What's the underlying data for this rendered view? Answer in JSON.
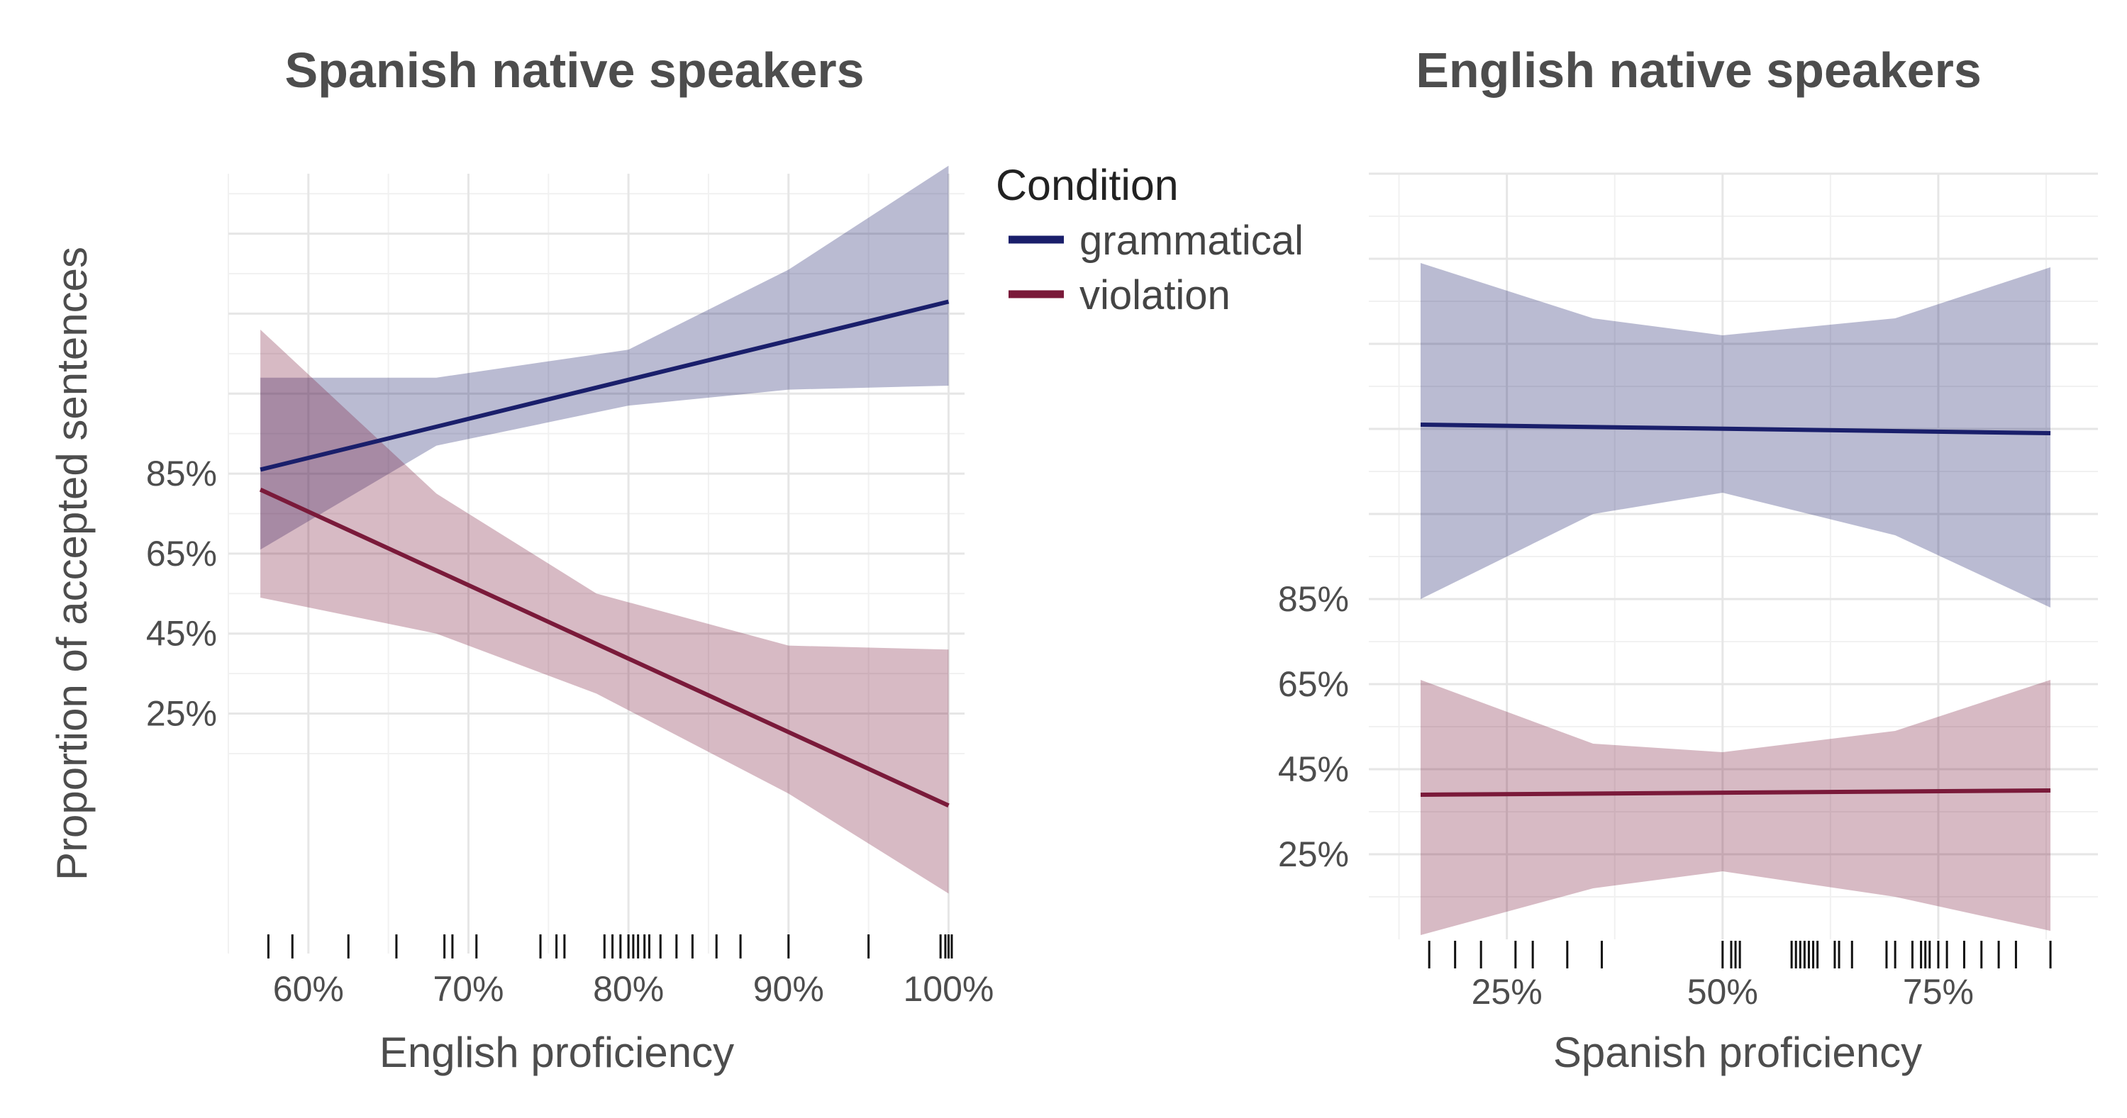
{
  "chart_data": [
    {
      "type": "line",
      "title": "Spanish native speakers",
      "xlabel": "English proficiency",
      "ylabel": "Proportion of accepted sentences",
      "xlim": [
        0.55,
        1.01
      ],
      "ylim": [
        -0.35,
        1.6
      ],
      "xticks": [
        0.6,
        0.7,
        0.8,
        0.9,
        1.0
      ],
      "xtick_labels": [
        "60%",
        "70%",
        "80%",
        "90%",
        "100%"
      ],
      "yticks": [
        0.25,
        0.45,
        0.65,
        0.85
      ],
      "ytick_labels": [
        "25%",
        "45%",
        "65%",
        "85%"
      ],
      "grid": true,
      "series": [
        {
          "name": "grammatical",
          "color": "#1a1f6b",
          "x": [
            0.57,
            1.0
          ],
          "y": [
            0.86,
            1.28
          ],
          "lower": [
            0.66,
            1.07
          ],
          "upper": [
            1.09,
            1.62
          ],
          "band_x": [
            0.57,
            0.68,
            0.8,
            0.9,
            1.0
          ],
          "band_lower": [
            0.66,
            0.92,
            1.02,
            1.06,
            1.07
          ],
          "band_upper": [
            1.09,
            1.09,
            1.16,
            1.36,
            1.62
          ]
        },
        {
          "name": "violation",
          "color": "#7a1a3a",
          "x": [
            0.57,
            1.0
          ],
          "y": [
            0.81,
            0.02
          ],
          "band_x": [
            0.57,
            0.68,
            0.78,
            0.9,
            1.0
          ],
          "band_lower": [
            0.54,
            0.45,
            0.3,
            0.05,
            -0.2
          ],
          "band_upper": [
            1.21,
            0.8,
            0.55,
            0.42,
            0.41
          ]
        }
      ],
      "rug_x": [
        0.575,
        0.59,
        0.625,
        0.655,
        0.685,
        0.69,
        0.705,
        0.745,
        0.755,
        0.76,
        0.785,
        0.79,
        0.795,
        0.8,
        0.803,
        0.806,
        0.81,
        0.813,
        0.82,
        0.83,
        0.84,
        0.855,
        0.87,
        0.9,
        0.95,
        0.995,
        0.998,
        1.0,
        1.002
      ]
    },
    {
      "type": "line",
      "title": "English native speakers",
      "xlabel": "Spanish proficiency",
      "xlim": [
        0.09,
        0.935
      ],
      "ylim": [
        0.05,
        1.85
      ],
      "xticks": [
        0.25,
        0.5,
        0.75
      ],
      "xtick_labels": [
        "25%",
        "50%",
        "75%"
      ],
      "yticks": [
        0.25,
        0.45,
        0.65,
        0.85
      ],
      "ytick_labels": [
        "25%",
        "45%",
        "65%",
        "85%"
      ],
      "grid": true,
      "series": [
        {
          "name": "grammatical",
          "color": "#1a1f6b",
          "x": [
            0.15,
            0.88
          ],
          "y": [
            1.26,
            1.24
          ],
          "band_x": [
            0.15,
            0.35,
            0.5,
            0.7,
            0.88
          ],
          "band_lower": [
            0.85,
            1.05,
            1.1,
            1.0,
            0.83
          ],
          "band_upper": [
            1.64,
            1.51,
            1.47,
            1.51,
            1.63
          ]
        },
        {
          "name": "violation",
          "color": "#7a1a3a",
          "x": [
            0.15,
            0.88
          ],
          "y": [
            0.39,
            0.4
          ],
          "band_x": [
            0.15,
            0.35,
            0.5,
            0.7,
            0.88
          ],
          "band_lower": [
            0.06,
            0.17,
            0.21,
            0.15,
            0.07
          ],
          "band_upper": [
            0.66,
            0.51,
            0.49,
            0.54,
            0.66
          ]
        }
      ],
      "rug_x": [
        0.16,
        0.19,
        0.22,
        0.26,
        0.28,
        0.32,
        0.36,
        0.5,
        0.51,
        0.515,
        0.52,
        0.58,
        0.585,
        0.59,
        0.595,
        0.6,
        0.605,
        0.61,
        0.63,
        0.635,
        0.65,
        0.69,
        0.7,
        0.72,
        0.73,
        0.735,
        0.74,
        0.75,
        0.76,
        0.78,
        0.8,
        0.82,
        0.84,
        0.88
      ]
    }
  ],
  "legend": {
    "title": "Condition",
    "placement": "between panels, top",
    "items": [
      {
        "label": "grammatical",
        "color": "#1a1f6b"
      },
      {
        "label": "violation",
        "color": "#7a1a3a"
      }
    ]
  },
  "band_opacity": 0.3
}
